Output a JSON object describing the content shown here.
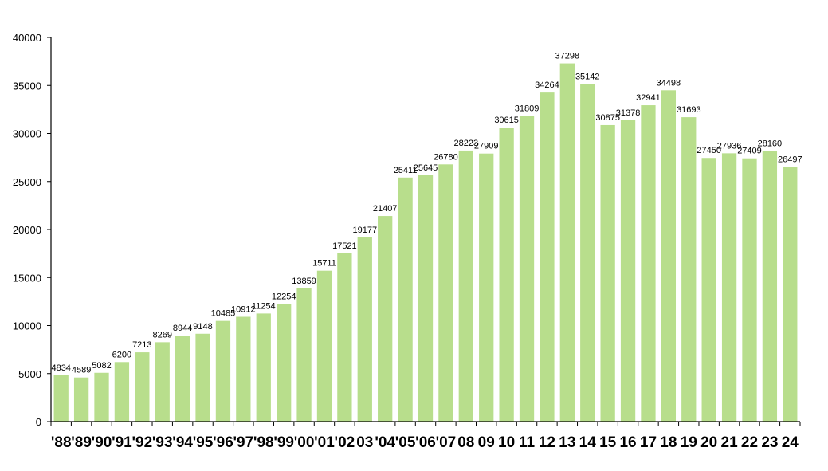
{
  "chart_data": {
    "type": "bar",
    "title": "",
    "xlabel": "",
    "ylabel": "",
    "ylim": [
      0,
      40000
    ],
    "yticks": [
      0,
      5000,
      10000,
      15000,
      20000,
      25000,
      30000,
      35000,
      40000
    ],
    "grid": false,
    "legend": "none",
    "bar_color": "#b8de8c",
    "categories": [
      "'88",
      "'89",
      "'90",
      "'91",
      "'92",
      "'93",
      "'94",
      "'95",
      "'96",
      "'97",
      "'98",
      "'99",
      "'00",
      "'01",
      "'02",
      "03",
      "'04",
      "'05",
      "'06",
      "'07",
      "08",
      "09",
      "10",
      "11",
      "12",
      "13",
      "14",
      "15",
      "16",
      "17",
      "18",
      "19",
      "20",
      "21",
      "22",
      "23",
      "24"
    ],
    "values": [
      4834,
      4589,
      5082,
      6200,
      7213,
      8269,
      8944,
      9148,
      10485,
      10912,
      11254,
      12254,
      13859,
      15711,
      17521,
      19177,
      21407,
      25411,
      25645,
      26780,
      28223,
      27909,
      30615,
      31809,
      34264,
      37298,
      35142,
      30875,
      31378,
      32941,
      34498,
      31693,
      27450,
      27936,
      27409,
      28160,
      26497
    ]
  }
}
